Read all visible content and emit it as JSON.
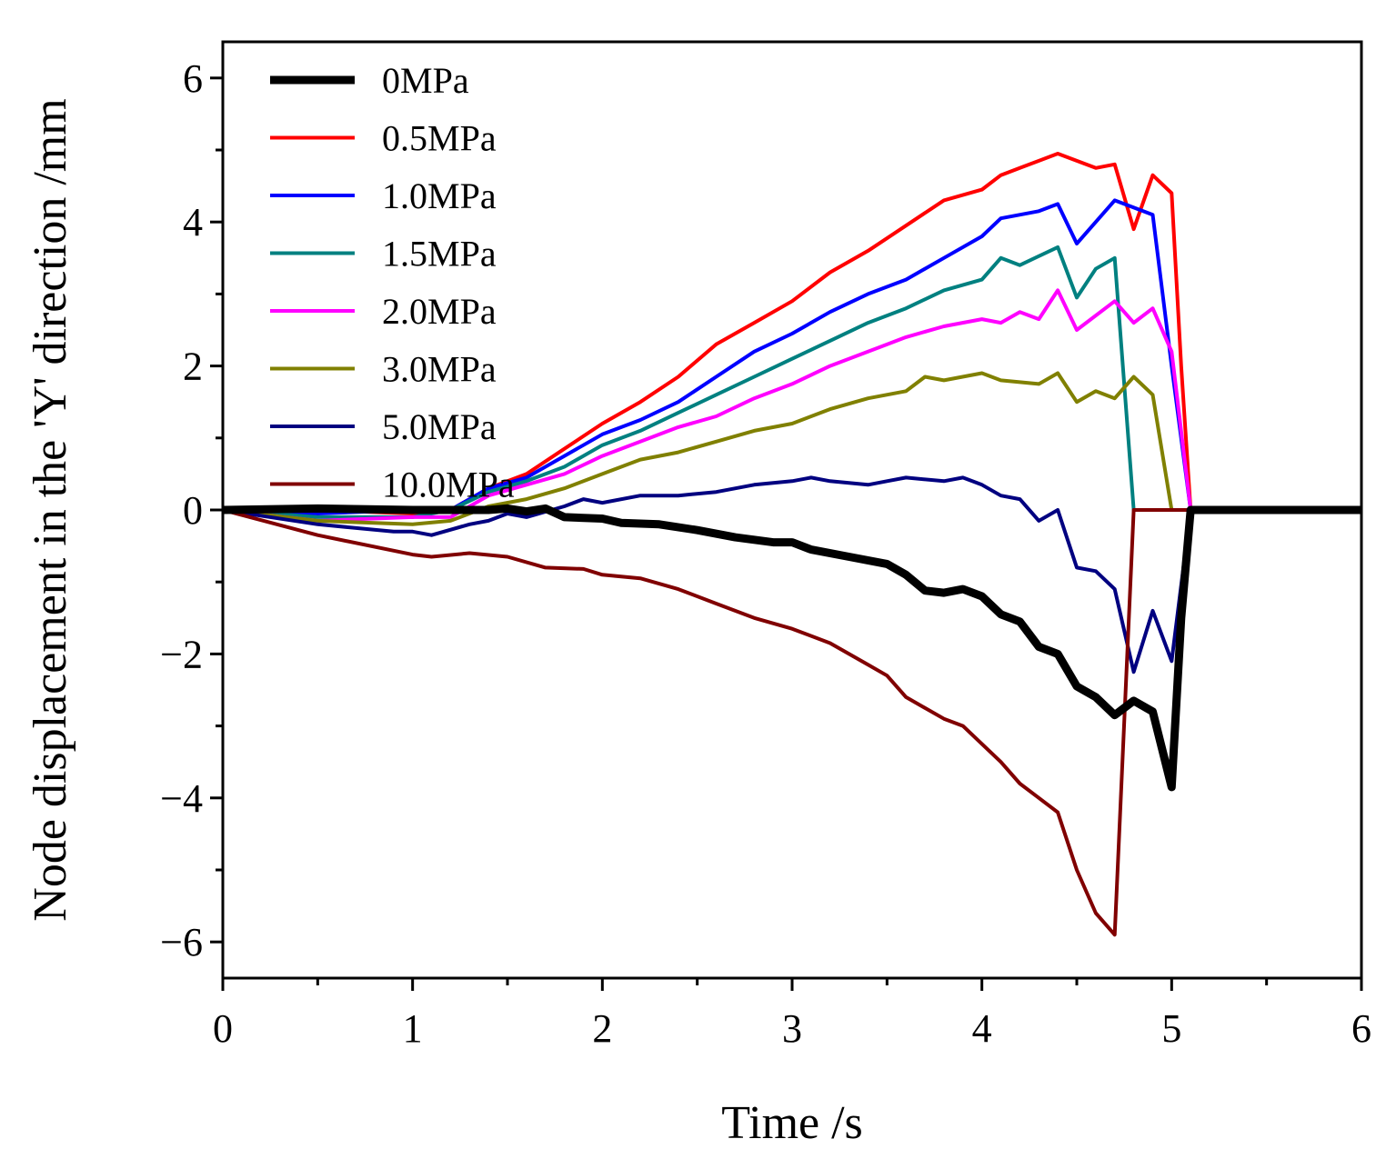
{
  "chart_data": {
    "type": "line",
    "title": "",
    "xlabel": "Time /s",
    "ylabel": "Node displacement in the 'Y' direction /mm",
    "xlim": [
      0,
      6
    ],
    "ylim": [
      -6.5,
      6.5
    ],
    "xticks": [
      0,
      1,
      2,
      3,
      4,
      5,
      6
    ],
    "xtick_labels": [
      "0",
      "1",
      "2",
      "3",
      "4",
      "5",
      "6"
    ],
    "yticks": [
      -6,
      -4,
      -2,
      0,
      2,
      4,
      6
    ],
    "ytick_labels": [
      "−6",
      "−4",
      "−2",
      "0",
      "2",
      "4",
      "6"
    ],
    "grid": false,
    "legend_position": "top-left",
    "series": [
      {
        "name": "0MPa",
        "color": "#000000",
        "width": 9,
        "x": [
          0,
          0.5,
          1.0,
          1.2,
          1.4,
          1.5,
          1.6,
          1.7,
          1.8,
          2.0,
          2.1,
          2.3,
          2.5,
          2.7,
          2.9,
          3.0,
          3.1,
          3.3,
          3.5,
          3.6,
          3.7,
          3.8,
          3.9,
          4.0,
          4.1,
          4.2,
          4.3,
          4.4,
          4.5,
          4.6,
          4.7,
          4.8,
          4.9,
          5.0,
          5.05,
          5.1,
          6.0
        ],
        "y": [
          0,
          0.02,
          0.0,
          0.0,
          0.0,
          0.02,
          -0.02,
          0.02,
          -0.1,
          -0.12,
          -0.18,
          -0.2,
          -0.28,
          -0.38,
          -0.45,
          -0.45,
          -0.55,
          -0.65,
          -0.75,
          -0.9,
          -1.12,
          -1.15,
          -1.1,
          -1.2,
          -1.45,
          -1.55,
          -1.9,
          -2.0,
          -2.45,
          -2.6,
          -2.85,
          -2.65,
          -2.8,
          -3.85,
          -1.5,
          0,
          0
        ]
      },
      {
        "name": "0.5MPa",
        "color": "#ff0000",
        "width": 4,
        "x": [
          0,
          0.5,
          1.0,
          1.2,
          1.4,
          1.6,
          1.8,
          2.0,
          2.2,
          2.4,
          2.6,
          2.8,
          3.0,
          3.2,
          3.4,
          3.6,
          3.8,
          4.0,
          4.1,
          4.2,
          4.4,
          4.6,
          4.7,
          4.8,
          4.9,
          5.0,
          5.05,
          5.1,
          6.0
        ],
        "y": [
          0,
          0.0,
          -0.05,
          0.0,
          0.3,
          0.5,
          0.85,
          1.2,
          1.5,
          1.85,
          2.3,
          2.6,
          2.9,
          3.3,
          3.6,
          3.95,
          4.3,
          4.45,
          4.65,
          4.75,
          4.95,
          4.75,
          4.8,
          3.9,
          4.65,
          4.4,
          2.0,
          0,
          0
        ]
      },
      {
        "name": "1.0MPa",
        "color": "#0000ff",
        "width": 4,
        "x": [
          0,
          0.5,
          1.0,
          1.2,
          1.4,
          1.6,
          1.8,
          2.0,
          2.2,
          2.4,
          2.6,
          2.8,
          3.0,
          3.2,
          3.4,
          3.6,
          3.8,
          4.0,
          4.1,
          4.3,
          4.4,
          4.5,
          4.7,
          4.9,
          5.0,
          5.1,
          6.0
        ],
        "y": [
          0,
          -0.05,
          0.0,
          0.0,
          0.3,
          0.45,
          0.75,
          1.05,
          1.25,
          1.5,
          1.85,
          2.2,
          2.45,
          2.75,
          3.0,
          3.2,
          3.5,
          3.8,
          4.05,
          4.15,
          4.25,
          3.7,
          4.3,
          4.1,
          2.0,
          0,
          0
        ]
      },
      {
        "name": "1.5MPa",
        "color": "#008080",
        "width": 4,
        "x": [
          0,
          0.5,
          1.0,
          1.2,
          1.4,
          1.6,
          1.8,
          2.0,
          2.2,
          2.4,
          2.6,
          2.8,
          3.0,
          3.2,
          3.4,
          3.6,
          3.8,
          4.0,
          4.1,
          4.2,
          4.4,
          4.5,
          4.6,
          4.7,
          4.8,
          6.0
        ],
        "y": [
          0,
          -0.1,
          -0.1,
          0.0,
          0.25,
          0.4,
          0.6,
          0.9,
          1.1,
          1.35,
          1.6,
          1.85,
          2.1,
          2.35,
          2.6,
          2.8,
          3.05,
          3.2,
          3.5,
          3.4,
          3.65,
          2.95,
          3.35,
          3.5,
          0,
          0
        ]
      },
      {
        "name": "2.0MPa",
        "color": "#ff00ff",
        "width": 4,
        "x": [
          0,
          0.5,
          1.0,
          1.2,
          1.4,
          1.6,
          1.8,
          2.0,
          2.2,
          2.4,
          2.6,
          2.8,
          3.0,
          3.2,
          3.4,
          3.6,
          3.8,
          4.0,
          4.1,
          4.2,
          4.3,
          4.4,
          4.5,
          4.7,
          4.8,
          4.9,
          5.0,
          5.1,
          6.0
        ],
        "y": [
          0,
          -0.15,
          -0.1,
          -0.1,
          0.2,
          0.35,
          0.5,
          0.75,
          0.95,
          1.15,
          1.3,
          1.55,
          1.75,
          2.0,
          2.2,
          2.4,
          2.55,
          2.65,
          2.6,
          2.75,
          2.65,
          3.05,
          2.5,
          2.9,
          2.6,
          2.8,
          2.2,
          0,
          0
        ]
      },
      {
        "name": "3.0MPa",
        "color": "#808000",
        "width": 4,
        "x": [
          0,
          0.5,
          1.0,
          1.2,
          1.4,
          1.6,
          1.8,
          2.0,
          2.2,
          2.4,
          2.6,
          2.8,
          3.0,
          3.2,
          3.4,
          3.6,
          3.7,
          3.8,
          4.0,
          4.1,
          4.3,
          4.4,
          4.5,
          4.6,
          4.7,
          4.8,
          4.9,
          5.0,
          6.0
        ],
        "y": [
          0,
          -0.15,
          -0.2,
          -0.15,
          0.05,
          0.15,
          0.3,
          0.5,
          0.7,
          0.8,
          0.95,
          1.1,
          1.2,
          1.4,
          1.55,
          1.65,
          1.85,
          1.8,
          1.9,
          1.8,
          1.75,
          1.9,
          1.5,
          1.65,
          1.55,
          1.85,
          1.6,
          0,
          0
        ]
      },
      {
        "name": "5.0MPa",
        "color": "#000080",
        "width": 4,
        "x": [
          0,
          0.5,
          0.9,
          1.0,
          1.1,
          1.3,
          1.4,
          1.5,
          1.6,
          1.8,
          1.9,
          2.0,
          2.2,
          2.4,
          2.6,
          2.8,
          3.0,
          3.1,
          3.2,
          3.4,
          3.5,
          3.6,
          3.8,
          3.9,
          4.0,
          4.1,
          4.2,
          4.3,
          4.4,
          4.5,
          4.6,
          4.7,
          4.8,
          4.9,
          5.0,
          5.1,
          6.0
        ],
        "y": [
          0,
          -0.2,
          -0.3,
          -0.3,
          -0.35,
          -0.2,
          -0.15,
          -0.05,
          -0.1,
          0.05,
          0.15,
          0.1,
          0.2,
          0.2,
          0.25,
          0.35,
          0.4,
          0.45,
          0.4,
          0.35,
          0.4,
          0.45,
          0.4,
          0.45,
          0.35,
          0.2,
          0.15,
          -0.15,
          0.0,
          -0.8,
          -0.85,
          -1.1,
          -2.25,
          -1.4,
          -2.1,
          0,
          0
        ]
      },
      {
        "name": "10.0MPa",
        "color": "#800000",
        "width": 4,
        "x": [
          0,
          0.5,
          1.0,
          1.1,
          1.3,
          1.5,
          1.7,
          1.9,
          2.0,
          2.2,
          2.4,
          2.6,
          2.8,
          3.0,
          3.2,
          3.4,
          3.5,
          3.6,
          3.8,
          3.9,
          4.0,
          4.1,
          4.2,
          4.3,
          4.4,
          4.5,
          4.6,
          4.7,
          4.8,
          6.0
        ],
        "y": [
          0,
          -0.35,
          -0.62,
          -0.65,
          -0.6,
          -0.65,
          -0.8,
          -0.82,
          -0.9,
          -0.95,
          -1.1,
          -1.3,
          -1.5,
          -1.65,
          -1.85,
          -2.15,
          -2.3,
          -2.6,
          -2.9,
          -3.0,
          -3.25,
          -3.5,
          -3.8,
          -4.0,
          -4.2,
          -5.0,
          -5.6,
          -5.9,
          0,
          0
        ]
      }
    ]
  }
}
